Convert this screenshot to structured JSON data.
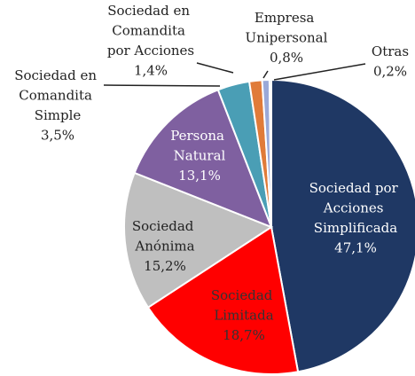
{
  "chart_data": {
    "type": "pie",
    "categories": [
      "Sociedad por Acciones Simplificada",
      "Sociedad Limitada",
      "Sociedad Anónima",
      "Persona Natural",
      "Sociedad en Comandita Simple",
      "Sociedad en Comandita por Acciones",
      "Empresa Unipersonal",
      "Otras"
    ],
    "values": [
      47.1,
      18.7,
      15.2,
      13.1,
      3.5,
      1.4,
      0.8,
      0.2
    ],
    "value_labels": [
      "47,1%",
      "18,7%",
      "15,2%",
      "13,1%",
      "3,5%",
      "1,4%",
      "0,8%",
      "0,2%"
    ],
    "colors": [
      "#1f3864",
      "#ff0000",
      "#bfbfbf",
      "#7f60a0",
      "#4a9eb5",
      "#e07b39",
      "#9aa9d8",
      "#2f4f8f"
    ]
  }
}
